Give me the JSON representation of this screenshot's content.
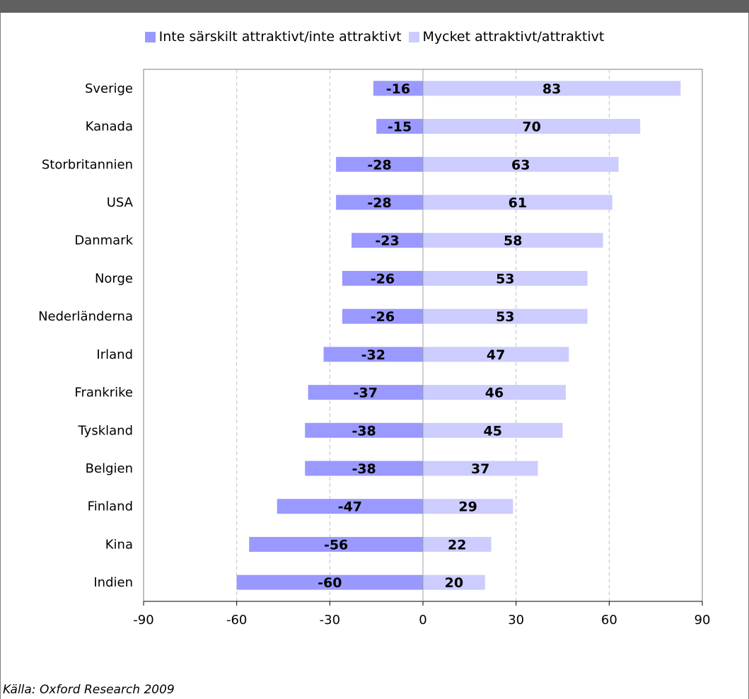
{
  "chart_data": {
    "type": "bar",
    "orientation": "horizontal",
    "stacked": "diverging",
    "categories": [
      "Sverige",
      "Kanada",
      "Storbritannien",
      "USA",
      "Danmark",
      "Norge",
      "Nederländerna",
      "Irland",
      "Frankrike",
      "Tyskland",
      "Belgien",
      "Finland",
      "Kina",
      "Indien"
    ],
    "series": [
      {
        "name": "Inte särskilt attraktivt/inte attraktivt",
        "values": [
          -16,
          -15,
          -28,
          -28,
          -23,
          -26,
          -26,
          -32,
          -37,
          -38,
          -38,
          -47,
          -56,
          -60
        ],
        "color": "#9999ff"
      },
      {
        "name": "Mycket attraktivt/attraktivt",
        "values": [
          83,
          70,
          63,
          61,
          58,
          53,
          53,
          47,
          46,
          45,
          37,
          29,
          22,
          20
        ],
        "color": "#ccccff"
      }
    ],
    "xlim": [
      -90,
      90
    ],
    "xticks": [
      -90,
      -60,
      -30,
      0,
      30,
      60,
      90
    ],
    "grid": "vertical dashed",
    "legend_position": "top-center"
  },
  "source": "Källa: Oxford Research 2009"
}
